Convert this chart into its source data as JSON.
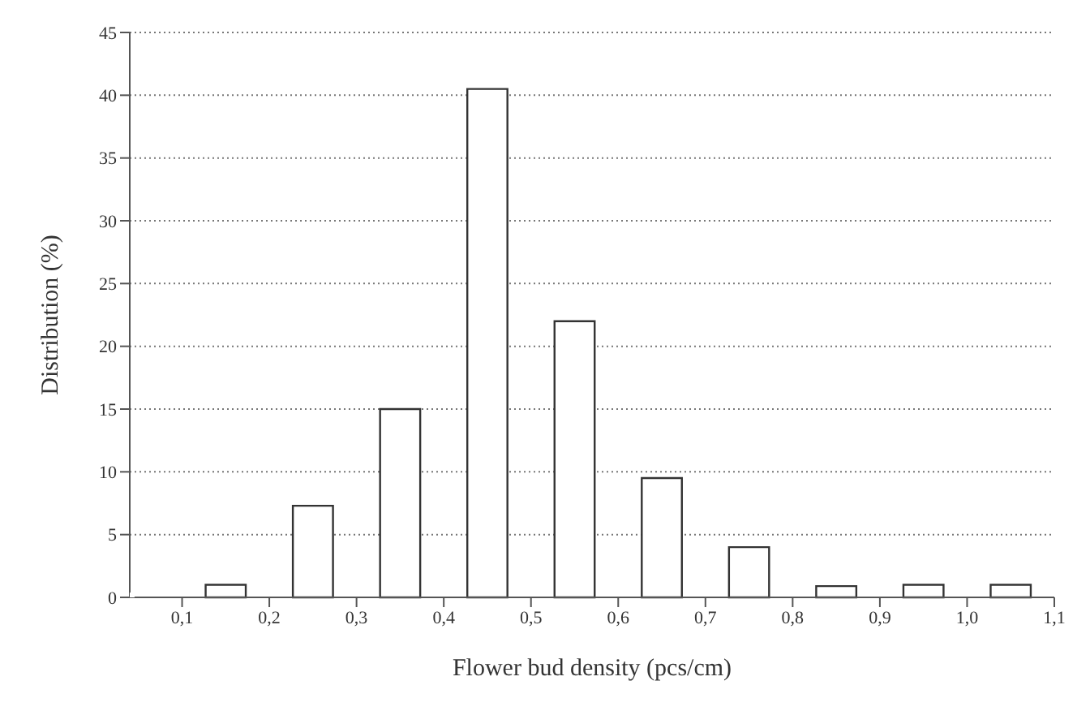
{
  "chart_data": {
    "type": "histogram",
    "xlabel": "Flower bud density (pcs/cm)",
    "ylabel": "Distribution (%)",
    "bins": [
      0.1,
      0.2,
      0.3,
      0.4,
      0.5,
      0.6,
      0.7,
      0.8,
      0.9,
      1.0,
      1.1
    ],
    "values": [
      1,
      7.3,
      15,
      40.5,
      22,
      9.5,
      4,
      0.9,
      1,
      1
    ],
    "color": "#ffffff",
    "xlim": [
      0.04,
      1.1
    ],
    "xticks": [
      {
        "value": 0.1,
        "label": "0,1"
      },
      {
        "value": 0.2,
        "label": "0,2"
      },
      {
        "value": 0.3,
        "label": "0,3"
      },
      {
        "value": 0.4,
        "label": "0,4"
      },
      {
        "value": 0.5,
        "label": "0,5"
      },
      {
        "value": 0.6,
        "label": "0,6"
      },
      {
        "value": 0.7,
        "label": "0,7"
      },
      {
        "value": 0.8,
        "label": "0,8"
      },
      {
        "value": 0.9,
        "label": "0,9"
      },
      {
        "value": 1.0,
        "label": "1,0"
      },
      {
        "value": 1.1,
        "label": "1,1"
      }
    ],
    "ylim": [
      0,
      45
    ],
    "yticks": [
      0,
      5,
      10,
      15,
      20,
      25,
      30,
      35,
      40,
      45
    ],
    "grid": "y"
  }
}
